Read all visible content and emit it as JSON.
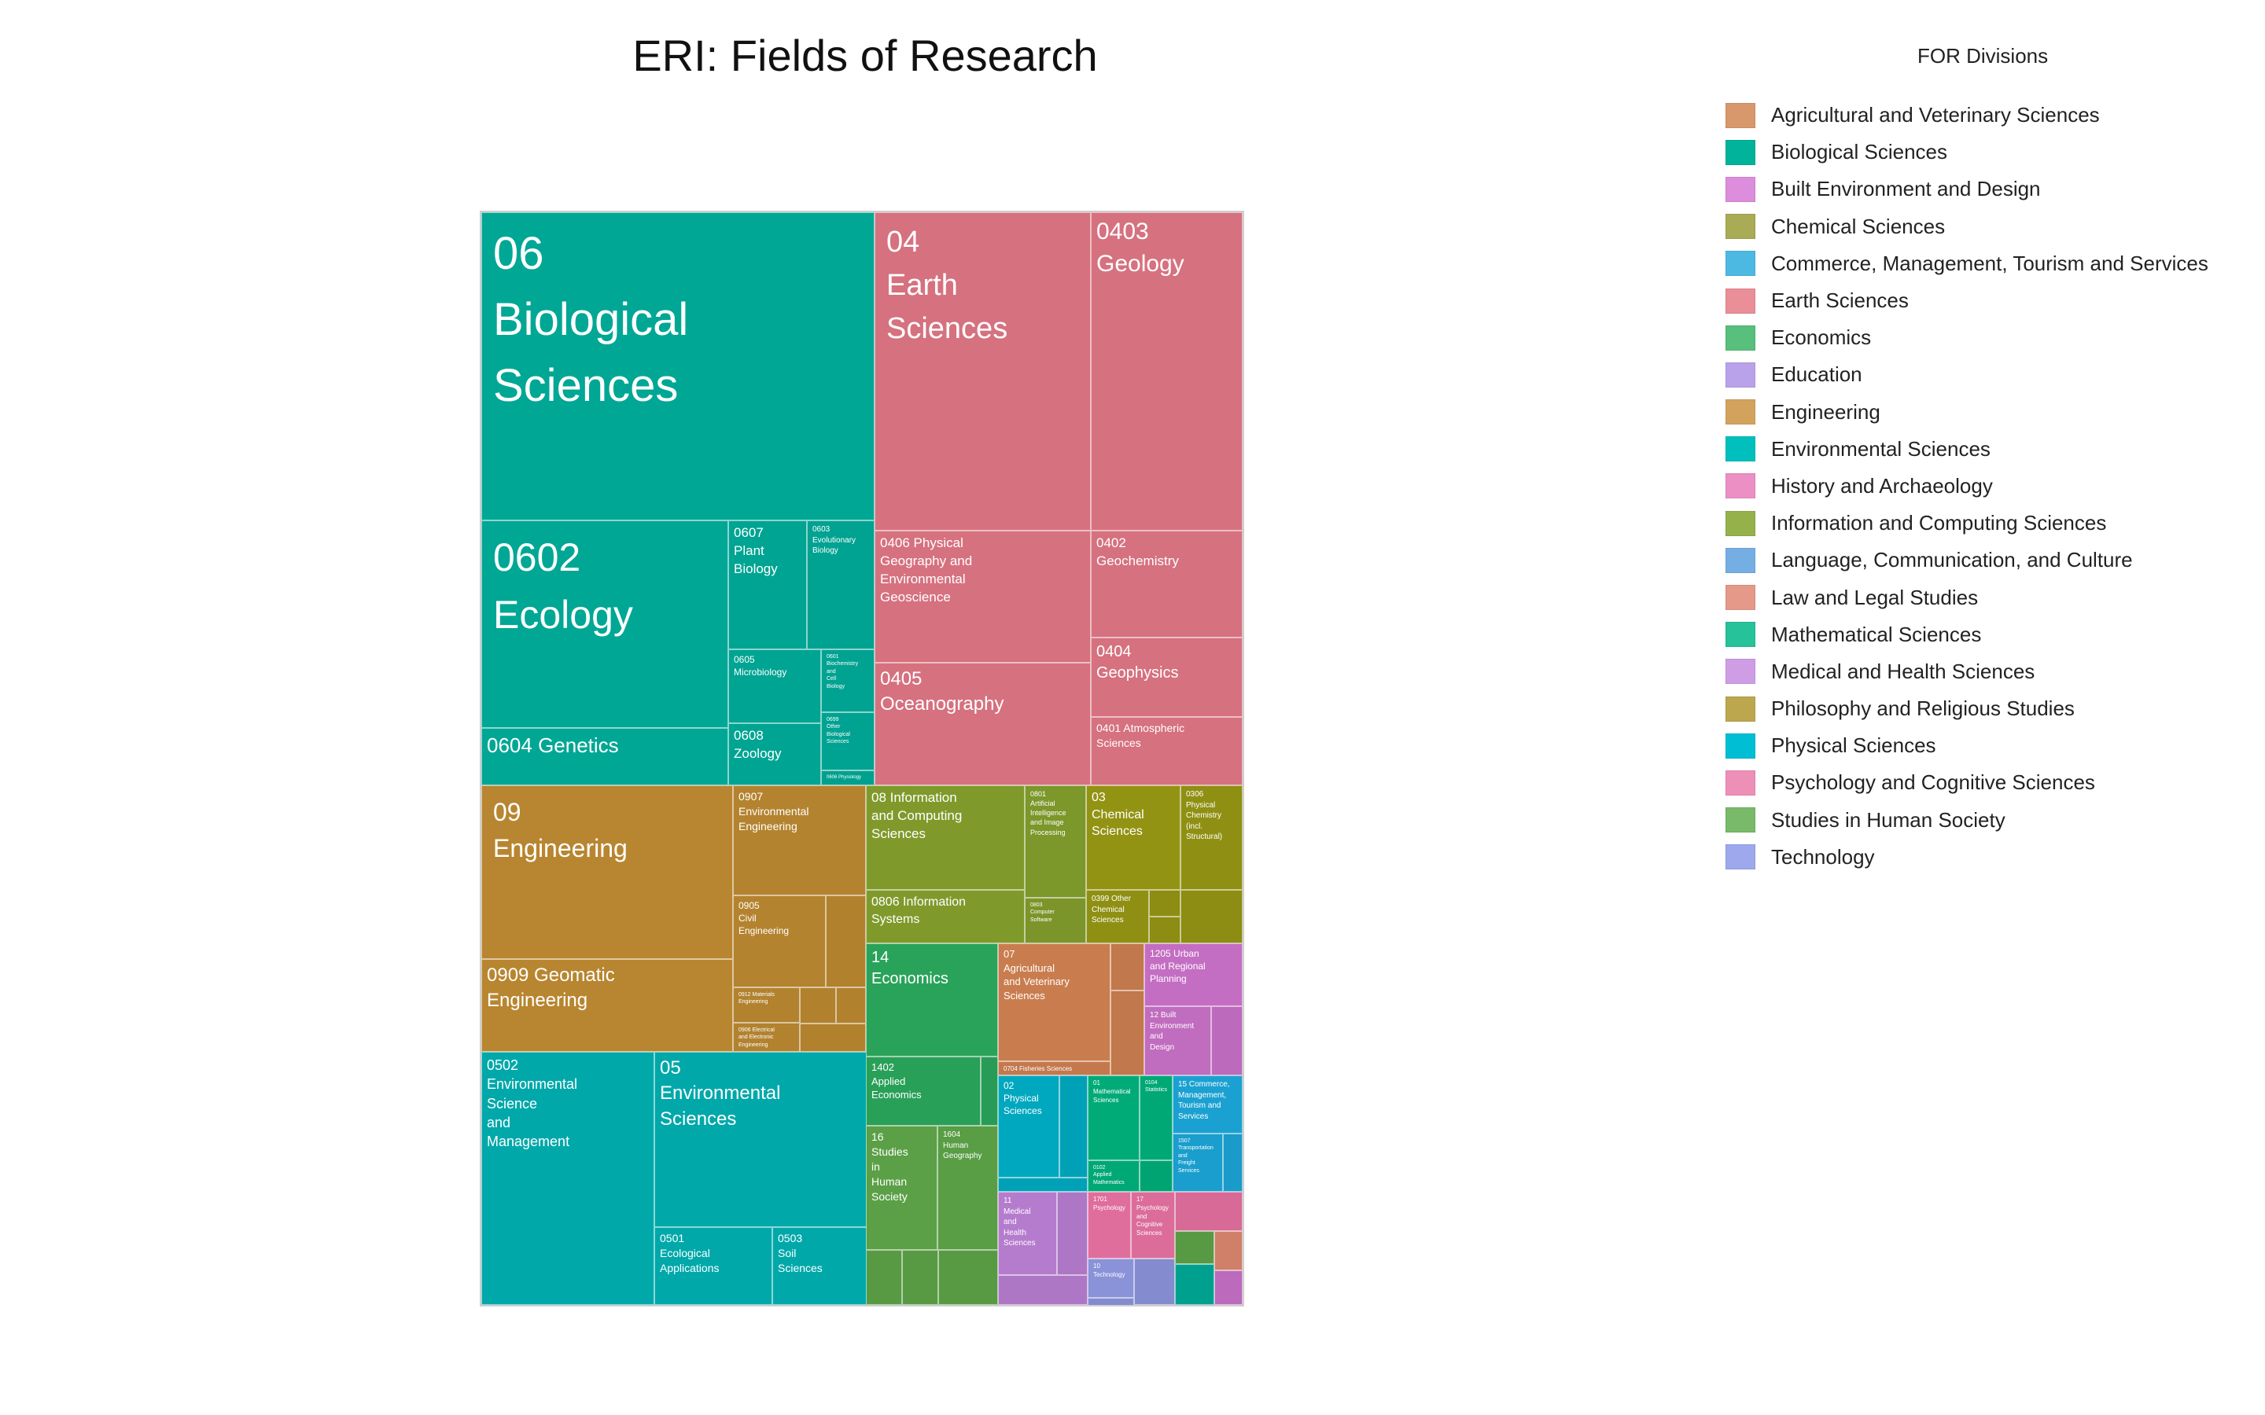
{
  "chart_data": {
    "type": "treemap",
    "title": "ERI: Fields of Research",
    "legend_title": "FOR Divisions",
    "legend_position": "top-right",
    "legend": [
      {
        "name": "Agricultural and Veterinary Sciences",
        "color": "#d9976c"
      },
      {
        "name": "Biological Sciences",
        "color": "#00b39a"
      },
      {
        "name": "Built Environment and Design",
        "color": "#dc8ddb"
      },
      {
        "name": "Chemical Sciences",
        "color": "#a9ab55"
      },
      {
        "name": "Commerce, Management, Tourism and Services",
        "color": "#4cb9e3"
      },
      {
        "name": "Earth Sciences",
        "color": "#ea8e98"
      },
      {
        "name": "Economics",
        "color": "#58bf7c"
      },
      {
        "name": "Education",
        "color": "#b9a2ea"
      },
      {
        "name": "Engineering",
        "color": "#d3a35d"
      },
      {
        "name": "Environmental Sciences",
        "color": "#00bfbd"
      },
      {
        "name": "History and Archaeology",
        "color": "#eb8fc4"
      },
      {
        "name": "Information and Computing Sciences",
        "color": "#95b24a"
      },
      {
        "name": "Language, Communication, and Culture",
        "color": "#75aee3"
      },
      {
        "name": "Law and Legal Studies",
        "color": "#e49989"
      },
      {
        "name": "Mathematical Sciences",
        "color": "#26c29a"
      },
      {
        "name": "Medical and Health Sciences",
        "color": "#cf9de6"
      },
      {
        "name": "Philosophy and Religious Studies",
        "color": "#bca74e"
      },
      {
        "name": "Physical Sciences",
        "color": "#00bfd4"
      },
      {
        "name": "Psychology and Cognitive Sciences",
        "color": "#ee8fb8"
      },
      {
        "name": "Studies in Human Society",
        "color": "#78ba6a"
      },
      {
        "name": "Technology",
        "color": "#9ea8ec"
      }
    ],
    "divisions": [
      {
        "code": "06",
        "name": "Biological Sciences",
        "color": "#00a795",
        "label": "06\nBiological\nSciences",
        "children": [
          {
            "code": "0602",
            "label": "0602\nEcology"
          },
          {
            "code": "0604",
            "label": "0604 Genetics"
          },
          {
            "code": "0607",
            "label": "0607\nPlant\nBiology"
          },
          {
            "code": "0605",
            "label": "0605\nMicrobiology"
          },
          {
            "code": "0608",
            "label": "0608\nZoology"
          },
          {
            "code": "0603",
            "label": "0603\nEvolutionary\nBiology"
          },
          {
            "code": "0601",
            "label": "0601\nBiochemistry\nand\nCell\nBiology"
          },
          {
            "code": "0699",
            "label": "0699\nOther\nBiological\nSciences"
          },
          {
            "code": "0606",
            "label": "0606 Physiology"
          }
        ]
      },
      {
        "code": "04",
        "name": "Earth Sciences",
        "color": "#d6717f",
        "label": "04\nEarth\nSciences",
        "children": [
          {
            "code": "0403",
            "label": "0403\nGeology"
          },
          {
            "code": "0406",
            "label": "0406 Physical\nGeography and\nEnvironmental\nGeoscience"
          },
          {
            "code": "0402",
            "label": "0402\nGeochemistry"
          },
          {
            "code": "0405",
            "label": "0405\nOceanography"
          },
          {
            "code": "0404",
            "label": "0404\nGeophysics"
          },
          {
            "code": "0401",
            "label": "0401 Atmospheric\nSciences"
          }
        ]
      },
      {
        "code": "09",
        "name": "Engineering",
        "color": "#b88630",
        "label": "09\nEngineering",
        "children": [
          {
            "code": "0909",
            "label": "0909 Geomatic\nEngineering"
          },
          {
            "code": "0907",
            "label": "0907\nEnvironmental\nEngineering"
          },
          {
            "code": "0905",
            "label": "0905\nCivil\nEngineering"
          },
          {
            "code": "0912",
            "label": "0912 Materials\nEngineering"
          },
          {
            "code": "0906",
            "label": "0906 Electrical\nand Electronic\nEngineering"
          }
        ]
      },
      {
        "code": "05",
        "name": "Environmental Sciences",
        "color": "#00a8aa",
        "label": "05\nEnvironmental\nSciences",
        "children": [
          {
            "code": "0502",
            "label": "0502\nEnvironmental\nScience\nand\nManagement"
          },
          {
            "code": "0501",
            "label": "0501\nEcological\nApplications"
          },
          {
            "code": "0503",
            "label": "0503\nSoil\nSciences"
          }
        ]
      },
      {
        "code": "08",
        "name": "Information and Computing Sciences",
        "color": "#7f9a2b",
        "label": "08 Information\nand Computing\nSciences",
        "children": [
          {
            "code": "0806",
            "label": "0806 Information\nSystems"
          },
          {
            "code": "0801",
            "label": "0801\nArtificial\nIntelligence\nand Image\nProcessing"
          },
          {
            "code": "0803",
            "label": "0803\nComputer\nSoftware"
          }
        ]
      },
      {
        "code": "03",
        "name": "Chemical Sciences",
        "color": "#929313",
        "label": "03\nChemical\nSciences",
        "children": [
          {
            "code": "0306",
            "label": "0306\nPhysical\nChemistry\n(incl.\nStructural)"
          },
          {
            "code": "0399",
            "label": "0399 Other\nChemical\nSciences"
          }
        ]
      },
      {
        "code": "14",
        "name": "Economics",
        "color": "#2aa35a",
        "label": "14\nEconomics",
        "children": [
          {
            "code": "1402",
            "label": "1402\nApplied\nEconomics"
          }
        ]
      },
      {
        "code": "07",
        "name": "Agricultural and Veterinary Sciences",
        "color": "#c97d4f",
        "label": "07\nAgricultural\nand Veterinary\nSciences",
        "children": [
          {
            "code": "0704",
            "label": "0704 Fisheries Sciences"
          }
        ]
      },
      {
        "code": "12",
        "name": "Built Environment and Design",
        "color": "#c46ec3",
        "label": "1205 Urban\nand Regional\nPlanning",
        "children": [
          {
            "code": "12",
            "label": "12 Built\nEnvironment\nand\nDesign"
          }
        ]
      },
      {
        "code": "16",
        "name": "Studies in Human Society",
        "color": "#5ba046",
        "label": "16\nStudies\nin\nHuman\nSociety",
        "children": [
          {
            "code": "1604",
            "label": "1604\nHuman\nGeography"
          }
        ]
      },
      {
        "code": "02",
        "name": "Physical Sciences",
        "color": "#00a8bf",
        "label": "02\nPhysical\nSciences"
      },
      {
        "code": "01",
        "name": "Mathematical Sciences",
        "color": "#00ab77",
        "label": "01\nMathematical\nSciences",
        "children": [
          {
            "code": "0104",
            "label": "0104\nStatistics"
          },
          {
            "code": "0102",
            "label": "0102\nApplied\nMathematics"
          }
        ]
      },
      {
        "code": "15",
        "name": "Commerce, Management, Tourism and Services",
        "color": "#1ba1d1",
        "label": "15 Commerce,\nManagement,\nTourism and\nServices",
        "children": [
          {
            "code": "1507",
            "label": "1507\nTransportation\nand\nFreight\nServices"
          }
        ]
      },
      {
        "code": "11",
        "name": "Medical and Health Sciences",
        "color": "#b57cce",
        "label": "11\nMedical\nand\nHealth\nSciences"
      },
      {
        "code": "17",
        "name": "Psychology and Cognitive Sciences",
        "color": "#e06e9c",
        "label": "17\nPsychology\nand\nCognitive\nSciences",
        "children": [
          {
            "code": "1701",
            "label": "1701\nPsychology"
          }
        ]
      },
      {
        "code": "10",
        "name": "Technology",
        "color": "#8a92d8",
        "label": "10\nTechnology"
      }
    ]
  }
}
